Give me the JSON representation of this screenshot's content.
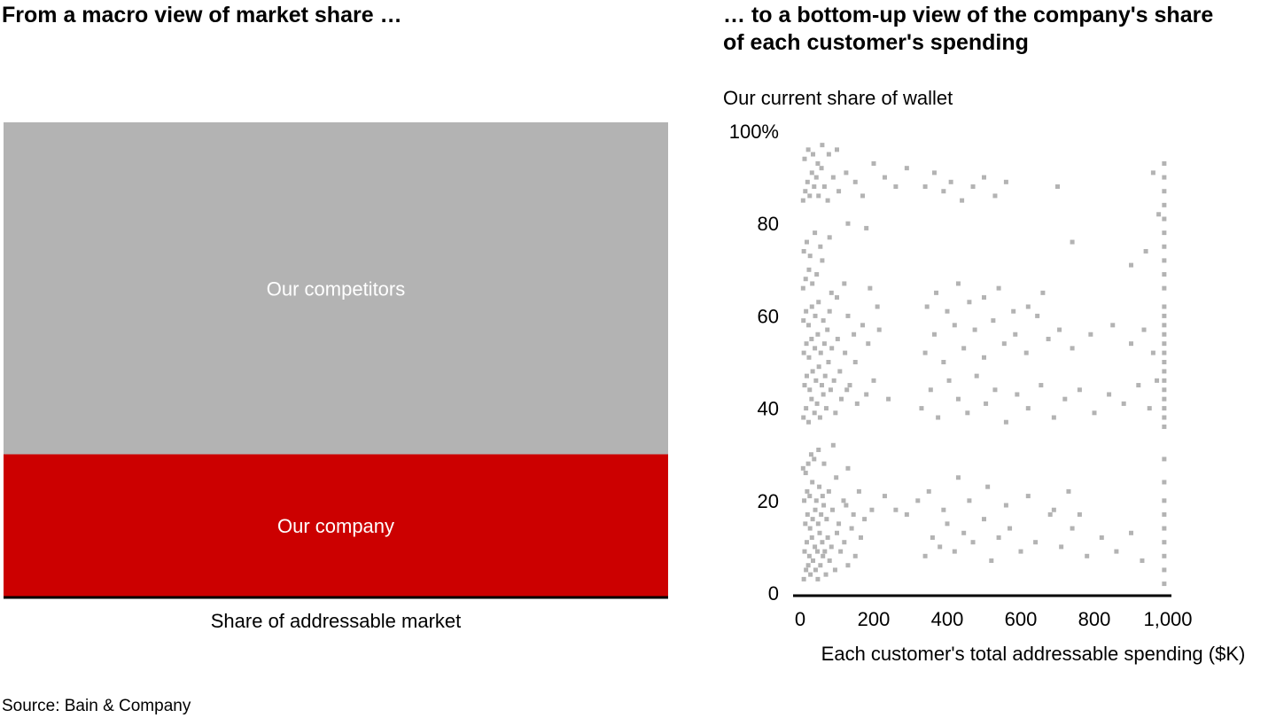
{
  "left_panel": {
    "heading": "From a macro view of market share …"
  },
  "right_panel": {
    "heading_line1": "… to a bottom-up view of the company's share",
    "heading_line2": "of each customer's spending"
  },
  "source": "Source: Bain & Company",
  "colors": {
    "company": "#cc0000",
    "competitors": "#b3b3b3",
    "dots": "#b3b3b3",
    "axis": "#000000"
  },
  "chart_data": [
    {
      "type": "bar",
      "stacked": true,
      "xlabel": "Share of addressable market",
      "ylim": [
        0,
        100
      ],
      "series": [
        {
          "name": "Our company",
          "values": [
            30
          ]
        },
        {
          "name": "Our competitors",
          "values": [
            70
          ]
        }
      ]
    },
    {
      "type": "scatter",
      "ylabel": "Our current share of wallet",
      "xlabel": "Each customer's total addressable spending ($K)",
      "xlim": [
        0,
        1000
      ],
      "ylim": [
        0,
        100
      ],
      "xticks": [
        "0",
        "200",
        "400",
        "600",
        "800",
        "1,000"
      ],
      "yticks": [
        "0",
        "20",
        "40",
        "60",
        "80",
        "100%"
      ],
      "grid": false,
      "points": [
        [
          10,
          3
        ],
        [
          16,
          5
        ],
        [
          22,
          6
        ],
        [
          28,
          4
        ],
        [
          35,
          7
        ],
        [
          42,
          5
        ],
        [
          48,
          3
        ],
        [
          55,
          6
        ],
        [
          62,
          8
        ],
        [
          70,
          4
        ],
        [
          80,
          7
        ],
        [
          95,
          5
        ],
        [
          110,
          9
        ],
        [
          130,
          6
        ],
        [
          150,
          8
        ],
        [
          12,
          9
        ],
        [
          18,
          11
        ],
        [
          25,
          8
        ],
        [
          32,
          12
        ],
        [
          40,
          10
        ],
        [
          47,
          9
        ],
        [
          53,
          13
        ],
        [
          60,
          11
        ],
        [
          67,
          9
        ],
        [
          75,
          12
        ],
        [
          85,
          10
        ],
        [
          100,
          13
        ],
        [
          120,
          11
        ],
        [
          140,
          14
        ],
        [
          165,
          12
        ],
        [
          14,
          15
        ],
        [
          20,
          17
        ],
        [
          27,
          14
        ],
        [
          34,
          16
        ],
        [
          41,
          18
        ],
        [
          49,
          15
        ],
        [
          57,
          17
        ],
        [
          64,
          19
        ],
        [
          72,
          16
        ],
        [
          88,
          18
        ],
        [
          105,
          15
        ],
        [
          125,
          19
        ],
        [
          145,
          17
        ],
        [
          175,
          16
        ],
        [
          195,
          18
        ],
        [
          11,
          20
        ],
        [
          19,
          22
        ],
        [
          26,
          21
        ],
        [
          33,
          24
        ],
        [
          44,
          20
        ],
        [
          52,
          23
        ],
        [
          61,
          21
        ],
        [
          78,
          22
        ],
        [
          98,
          25
        ],
        [
          118,
          20
        ],
        [
          160,
          22
        ],
        [
          230,
          21
        ],
        [
          260,
          18
        ],
        [
          290,
          17
        ],
        [
          320,
          20
        ],
        [
          8,
          27
        ],
        [
          15,
          26
        ],
        [
          22,
          28
        ],
        [
          30,
          30
        ],
        [
          38,
          29
        ],
        [
          50,
          31
        ],
        [
          65,
          28
        ],
        [
          90,
          32
        ],
        [
          130,
          27
        ],
        [
          9,
          38
        ],
        [
          16,
          40
        ],
        [
          23,
          37
        ],
        [
          31,
          42
        ],
        [
          39,
          39
        ],
        [
          46,
          41
        ],
        [
          54,
          38
        ],
        [
          63,
          43
        ],
        [
          71,
          40
        ],
        [
          83,
          44
        ],
        [
          96,
          39
        ],
        [
          112,
          42
        ],
        [
          135,
          45
        ],
        [
          155,
          41
        ],
        [
          180,
          43
        ],
        [
          12,
          45
        ],
        [
          18,
          47
        ],
        [
          26,
          44
        ],
        [
          34,
          48
        ],
        [
          43,
          46
        ],
        [
          51,
          49
        ],
        [
          59,
          45
        ],
        [
          68,
          47
        ],
        [
          77,
          50
        ],
        [
          92,
          46
        ],
        [
          108,
          48
        ],
        [
          127,
          44
        ],
        [
          150,
          50
        ],
        [
          200,
          46
        ],
        [
          240,
          42
        ],
        [
          10,
          52
        ],
        [
          17,
          54
        ],
        [
          24,
          51
        ],
        [
          31,
          55
        ],
        [
          40,
          53
        ],
        [
          48,
          56
        ],
        [
          56,
          52
        ],
        [
          66,
          54
        ],
        [
          74,
          57
        ],
        [
          86,
          53
        ],
        [
          102,
          55
        ],
        [
          122,
          52
        ],
        [
          146,
          56
        ],
        [
          185,
          54
        ],
        [
          215,
          57
        ],
        [
          9,
          59
        ],
        [
          16,
          61
        ],
        [
          23,
          58
        ],
        [
          32,
          62
        ],
        [
          41,
          60
        ],
        [
          50,
          63
        ],
        [
          63,
          59
        ],
        [
          80,
          61
        ],
        [
          100,
          64
        ],
        [
          130,
          60
        ],
        [
          170,
          58
        ],
        [
          210,
          62
        ],
        [
          8,
          66
        ],
        [
          15,
          68
        ],
        [
          24,
          70
        ],
        [
          33,
          67
        ],
        [
          45,
          69
        ],
        [
          60,
          72
        ],
        [
          85,
          65
        ],
        [
          120,
          67
        ],
        [
          190,
          66
        ],
        [
          10,
          74
        ],
        [
          18,
          76
        ],
        [
          27,
          73
        ],
        [
          40,
          78
        ],
        [
          55,
          75
        ],
        [
          80,
          77
        ],
        [
          130,
          80
        ],
        [
          180,
          79
        ],
        [
          8,
          85
        ],
        [
          14,
          87
        ],
        [
          20,
          89
        ],
        [
          26,
          86
        ],
        [
          32,
          91
        ],
        [
          38,
          88
        ],
        [
          44,
          90
        ],
        [
          50,
          86
        ],
        [
          58,
          92
        ],
        [
          66,
          88
        ],
        [
          75,
          85
        ],
        [
          90,
          90
        ],
        [
          105,
          87
        ],
        [
          125,
          91
        ],
        [
          150,
          89
        ],
        [
          170,
          86
        ],
        [
          200,
          93
        ],
        [
          230,
          90
        ],
        [
          260,
          88
        ],
        [
          290,
          92
        ],
        [
          12,
          94
        ],
        [
          22,
          96
        ],
        [
          35,
          95
        ],
        [
          48,
          93
        ],
        [
          60,
          97
        ],
        [
          78,
          95
        ],
        [
          100,
          96
        ],
        [
          340,
          8
        ],
        [
          360,
          12
        ],
        [
          380,
          10
        ],
        [
          400,
          15
        ],
        [
          420,
          9
        ],
        [
          445,
          13
        ],
        [
          470,
          11
        ],
        [
          500,
          16
        ],
        [
          520,
          7
        ],
        [
          540,
          12
        ],
        [
          570,
          14
        ],
        [
          600,
          9
        ],
        [
          640,
          11
        ],
        [
          680,
          17
        ],
        [
          710,
          10
        ],
        [
          740,
          14
        ],
        [
          780,
          8
        ],
        [
          820,
          12
        ],
        [
          860,
          9
        ],
        [
          900,
          13
        ],
        [
          930,
          7
        ],
        [
          350,
          22
        ],
        [
          390,
          18
        ],
        [
          430,
          25
        ],
        [
          460,
          20
        ],
        [
          510,
          23
        ],
        [
          560,
          19
        ],
        [
          620,
          21
        ],
        [
          690,
          18
        ],
        [
          730,
          22
        ],
        [
          760,
          17
        ],
        [
          330,
          40
        ],
        [
          355,
          44
        ],
        [
          375,
          38
        ],
        [
          405,
          46
        ],
        [
          430,
          42
        ],
        [
          455,
          39
        ],
        [
          480,
          47
        ],
        [
          505,
          41
        ],
        [
          530,
          44
        ],
        [
          560,
          37
        ],
        [
          590,
          43
        ],
        [
          620,
          40
        ],
        [
          655,
          45
        ],
        [
          690,
          38
        ],
        [
          720,
          42
        ],
        [
          760,
          44
        ],
        [
          800,
          39
        ],
        [
          840,
          43
        ],
        [
          880,
          41
        ],
        [
          920,
          45
        ],
        [
          950,
          40
        ],
        [
          970,
          46
        ],
        [
          340,
          52
        ],
        [
          365,
          56
        ],
        [
          390,
          50
        ],
        [
          420,
          58
        ],
        [
          445,
          53
        ],
        [
          475,
          57
        ],
        [
          500,
          51
        ],
        [
          525,
          59
        ],
        [
          555,
          54
        ],
        [
          585,
          56
        ],
        [
          615,
          52
        ],
        [
          645,
          60
        ],
        [
          675,
          55
        ],
        [
          705,
          57
        ],
        [
          740,
          53
        ],
        [
          790,
          56
        ],
        [
          850,
          58
        ],
        [
          900,
          54
        ],
        [
          935,
          57
        ],
        [
          960,
          52
        ],
        [
          345,
          62
        ],
        [
          370,
          65
        ],
        [
          400,
          61
        ],
        [
          430,
          67
        ],
        [
          460,
          63
        ],
        [
          500,
          64
        ],
        [
          540,
          66
        ],
        [
          580,
          61
        ],
        [
          620,
          62
        ],
        [
          660,
          65
        ],
        [
          340,
          88
        ],
        [
          365,
          91
        ],
        [
          390,
          87
        ],
        [
          410,
          89
        ],
        [
          440,
          85
        ],
        [
          470,
          88
        ],
        [
          500,
          90
        ],
        [
          530,
          86
        ],
        [
          560,
          89
        ],
        [
          700,
          88
        ],
        [
          740,
          76
        ],
        [
          900,
          71
        ],
        [
          940,
          74
        ],
        [
          960,
          91
        ],
        [
          975,
          82
        ],
        [
          990,
          2
        ],
        [
          990,
          5
        ],
        [
          990,
          8
        ],
        [
          990,
          11
        ],
        [
          990,
          14
        ],
        [
          990,
          17
        ],
        [
          990,
          20
        ],
        [
          990,
          24
        ],
        [
          990,
          29
        ],
        [
          990,
          36
        ],
        [
          990,
          38
        ],
        [
          990,
          40
        ],
        [
          990,
          42
        ],
        [
          990,
          44
        ],
        [
          990,
          46
        ],
        [
          990,
          48
        ],
        [
          990,
          50
        ],
        [
          990,
          52
        ],
        [
          990,
          54
        ],
        [
          990,
          56
        ],
        [
          990,
          58
        ],
        [
          990,
          60
        ],
        [
          990,
          62
        ],
        [
          990,
          66
        ],
        [
          990,
          69
        ],
        [
          990,
          72
        ],
        [
          990,
          75
        ],
        [
          990,
          78
        ],
        [
          990,
          81
        ],
        [
          990,
          84
        ],
        [
          990,
          87
        ],
        [
          990,
          90
        ],
        [
          990,
          93
        ]
      ]
    }
  ]
}
